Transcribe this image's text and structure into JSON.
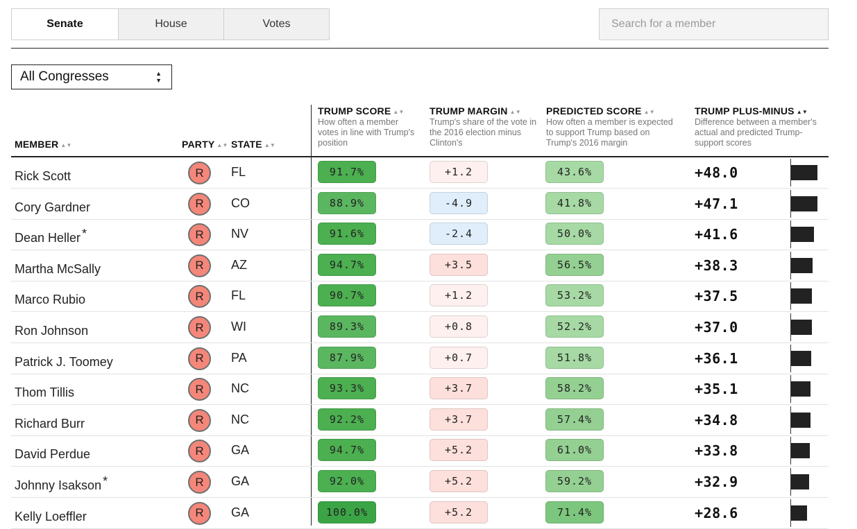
{
  "tabs": [
    {
      "label": "Senate",
      "active": true
    },
    {
      "label": "House",
      "active": false
    },
    {
      "label": "Votes",
      "active": false
    }
  ],
  "search": {
    "placeholder": "Search for a member"
  },
  "congress_select": {
    "value": "All Congresses"
  },
  "columns": {
    "member": "MEMBER",
    "party": "PARTY",
    "state": "STATE",
    "trump_score": {
      "title": "TRUMP SCORE",
      "desc": "How often a member votes in line with Trump's position"
    },
    "trump_margin": {
      "title": "TRUMP MARGIN",
      "desc": "Trump's share of the vote in the 2016 election minus Clinton's"
    },
    "predicted_score": {
      "title": "PREDICTED SCORE",
      "desc": "How often a member is expected to support Trump based on Trump's 2016 margin"
    },
    "plus_minus": {
      "title": "TRUMP PLUS-MINUS",
      "desc": "Difference between a member's actual and predicted Trump-support scores"
    }
  },
  "colors": {
    "republican": "#f4877a",
    "score_dark": "#4caf50",
    "score_mid": "#6fc173",
    "predicted": "#9fd59e",
    "margin_pos_light": "#fdf0ee",
    "margin_pos": "#fde0dc",
    "margin_neg": "#dfeefa",
    "bar": "#222222"
  },
  "rows": [
    {
      "name": "Rick Scott",
      "asterisk": "",
      "party": "R",
      "state": "FL",
      "trump_score": "91.7%",
      "trump_margin": "+1.2",
      "predicted_score": "43.6%",
      "plus_minus": "+48.0",
      "plus_minus_value": 48.0
    },
    {
      "name": "Cory Gardner",
      "asterisk": "",
      "party": "R",
      "state": "CO",
      "trump_score": "88.9%",
      "trump_margin": "-4.9",
      "predicted_score": "41.8%",
      "plus_minus": "+47.1",
      "plus_minus_value": 47.1
    },
    {
      "name": "Dean Heller",
      "asterisk": "*",
      "party": "R",
      "state": "NV",
      "trump_score": "91.6%",
      "trump_margin": "-2.4",
      "predicted_score": "50.0%",
      "plus_minus": "+41.6",
      "plus_minus_value": 41.6
    },
    {
      "name": "Martha McSally",
      "asterisk": "",
      "party": "R",
      "state": "AZ",
      "trump_score": "94.7%",
      "trump_margin": "+3.5",
      "predicted_score": "56.5%",
      "plus_minus": "+38.3",
      "plus_minus_value": 38.3
    },
    {
      "name": "Marco Rubio",
      "asterisk": "",
      "party": "R",
      "state": "FL",
      "trump_score": "90.7%",
      "trump_margin": "+1.2",
      "predicted_score": "53.2%",
      "plus_minus": "+37.5",
      "plus_minus_value": 37.5
    },
    {
      "name": "Ron Johnson",
      "asterisk": "",
      "party": "R",
      "state": "WI",
      "trump_score": "89.3%",
      "trump_margin": "+0.8",
      "predicted_score": "52.2%",
      "plus_minus": "+37.0",
      "plus_minus_value": 37.0
    },
    {
      "name": "Patrick J. Toomey",
      "asterisk": "",
      "party": "R",
      "state": "PA",
      "trump_score": "87.9%",
      "trump_margin": "+0.7",
      "predicted_score": "51.8%",
      "plus_minus": "+36.1",
      "plus_minus_value": 36.1
    },
    {
      "name": "Thom Tillis",
      "asterisk": "",
      "party": "R",
      "state": "NC",
      "trump_score": "93.3%",
      "trump_margin": "+3.7",
      "predicted_score": "58.2%",
      "plus_minus": "+35.1",
      "plus_minus_value": 35.1
    },
    {
      "name": "Richard Burr",
      "asterisk": "",
      "party": "R",
      "state": "NC",
      "trump_score": "92.2%",
      "trump_margin": "+3.7",
      "predicted_score": "57.4%",
      "plus_minus": "+34.8",
      "plus_minus_value": 34.8
    },
    {
      "name": "David Perdue",
      "asterisk": "",
      "party": "R",
      "state": "GA",
      "trump_score": "94.7%",
      "trump_margin": "+5.2",
      "predicted_score": "61.0%",
      "plus_minus": "+33.8",
      "plus_minus_value": 33.8
    },
    {
      "name": "Johnny Isakson",
      "asterisk": "*",
      "party": "R",
      "state": "GA",
      "trump_score": "92.0%",
      "trump_margin": "+5.2",
      "predicted_score": "59.2%",
      "plus_minus": "+32.9",
      "plus_minus_value": 32.9
    },
    {
      "name": "Kelly Loeffler",
      "asterisk": "",
      "party": "R",
      "state": "GA",
      "trump_score": "100.0%",
      "trump_margin": "+5.2",
      "predicted_score": "71.4%",
      "plus_minus": "+28.6",
      "plus_minus_value": 28.6
    }
  ]
}
